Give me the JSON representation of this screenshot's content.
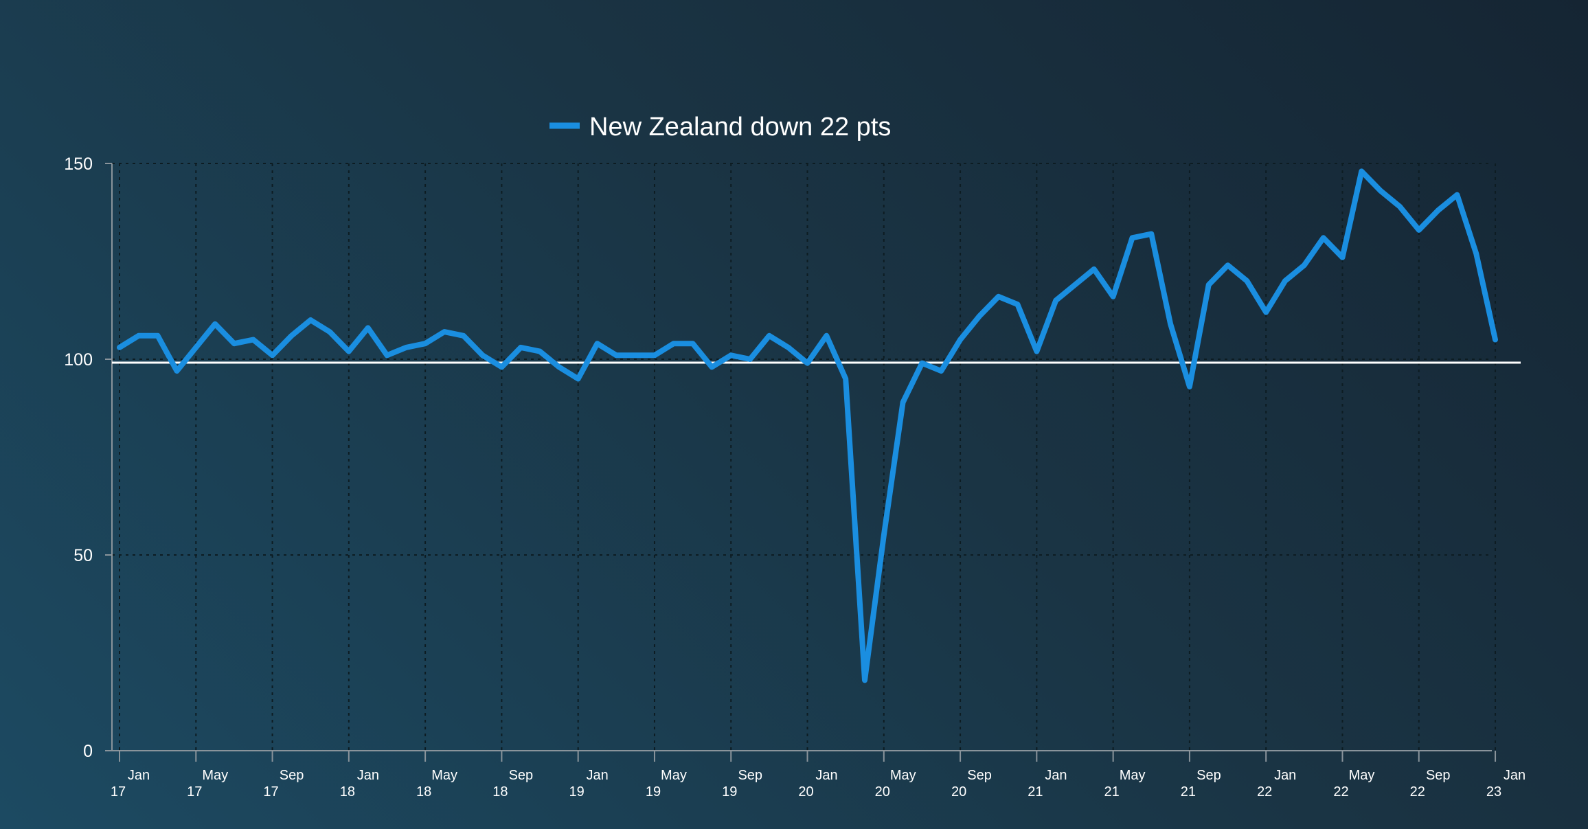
{
  "chart_data": {
    "type": "line",
    "title": "",
    "xlabel": "",
    "ylabel": "",
    "ylim": [
      0,
      150
    ],
    "yticks": [
      0,
      50,
      100,
      150
    ],
    "grid": true,
    "legend": {
      "placement": "top-center"
    },
    "x_tick_labels": [
      {
        "month": "Jan",
        "year": "17"
      },
      {
        "month": "May",
        "year": "17"
      },
      {
        "month": "Sep",
        "year": "17"
      },
      {
        "month": "Jan",
        "year": "18"
      },
      {
        "month": "May",
        "year": "18"
      },
      {
        "month": "Sep",
        "year": "18"
      },
      {
        "month": "Jan",
        "year": "19"
      },
      {
        "month": "May",
        "year": "19"
      },
      {
        "month": "Sep",
        "year": "19"
      },
      {
        "month": "Jan",
        "year": "20"
      },
      {
        "month": "May",
        "year": "20"
      },
      {
        "month": "Sep",
        "year": "20"
      },
      {
        "month": "Jan",
        "year": "21"
      },
      {
        "month": "May",
        "year": "21"
      },
      {
        "month": "Sep",
        "year": "21"
      },
      {
        "month": "Jan",
        "year": "22"
      },
      {
        "month": "May",
        "year": "22"
      },
      {
        "month": "Sep",
        "year": "22"
      },
      {
        "month": "Jan",
        "year": "23"
      }
    ],
    "reference_line": {
      "y": 100,
      "color": "#ffffff"
    },
    "series": [
      {
        "name": "New Zealand down 22 pts",
        "color": "#1a8ee0",
        "x_start": "Jan 17",
        "values": [
          103,
          106,
          106,
          97,
          103,
          109,
          104,
          105,
          101,
          106,
          110,
          107,
          102,
          108,
          101,
          103,
          104,
          107,
          106,
          101,
          98,
          103,
          102,
          98,
          95,
          104,
          101,
          101,
          101,
          104,
          104,
          98,
          101,
          100,
          106,
          103,
          99,
          106,
          95,
          18,
          55,
          89,
          99,
          97,
          105,
          111,
          116,
          114,
          102,
          115,
          119,
          123,
          116,
          131,
          132,
          109,
          93,
          119,
          124,
          120,
          112,
          120,
          124,
          131,
          126,
          148,
          143,
          139,
          133,
          138,
          142,
          127,
          105
        ]
      }
    ]
  }
}
